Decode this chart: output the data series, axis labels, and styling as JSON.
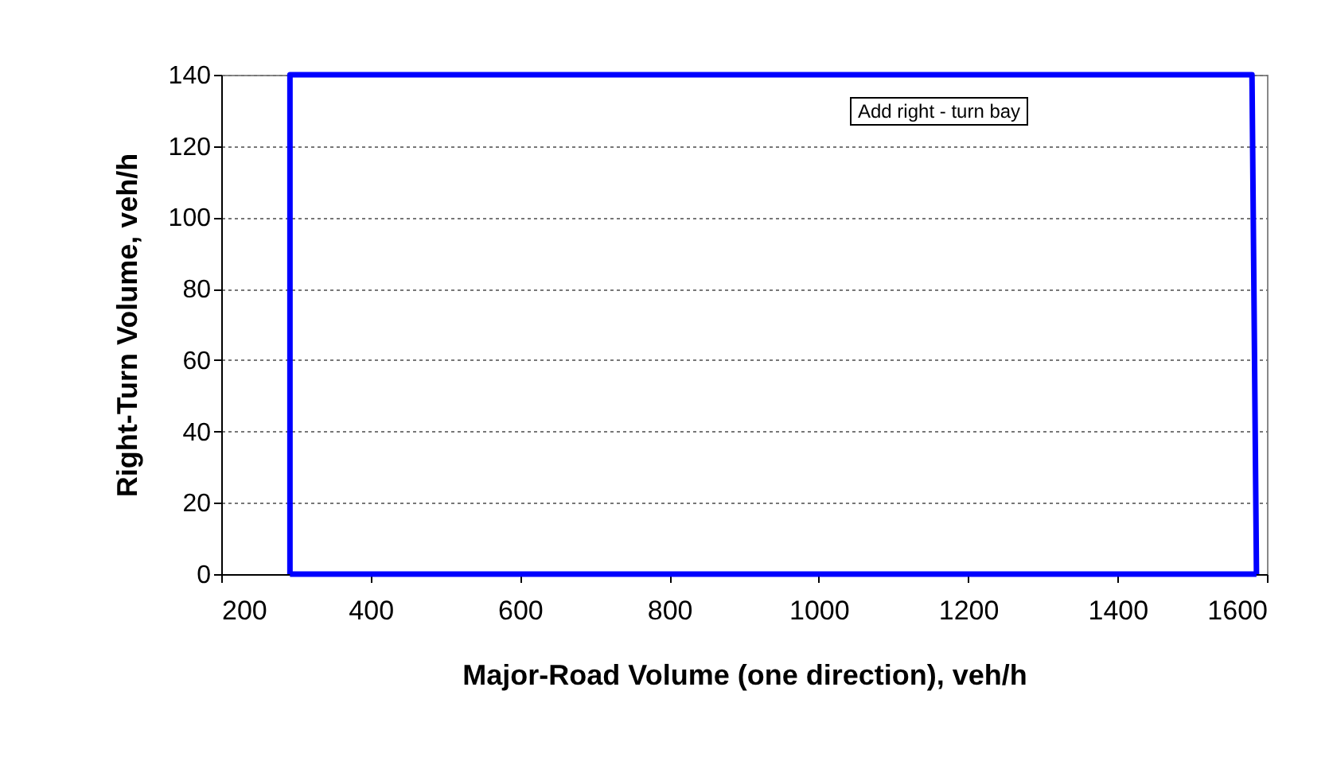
{
  "chart_data": {
    "type": "line",
    "xlabel": "Major-Road Volume (one direction), veh/h",
    "ylabel": "Right-Turn Volume, veh/h",
    "series": [
      {
        "color": "#0000ff",
        "x": [
          292,
          292,
          1580,
          1586
        ],
        "values": [
          0,
          140,
          140,
          0
        ]
      },
      {
        "color": "#0000ff",
        "x": [
          292,
          1586
        ],
        "values": [
          0,
          0
        ]
      }
    ],
    "xlim": [
      200,
      1600
    ],
    "xticks": [
      200,
      400,
      600,
      800,
      1000,
      1200,
      1400,
      1600
    ],
    "ylim": [
      0,
      140
    ],
    "yticks": [
      0,
      20,
      40,
      60,
      80,
      100,
      120,
      140
    ],
    "grid": "y",
    "marker": "none",
    "line_style": "solid",
    "annotations": [
      "Add right - turn bay"
    ]
  }
}
